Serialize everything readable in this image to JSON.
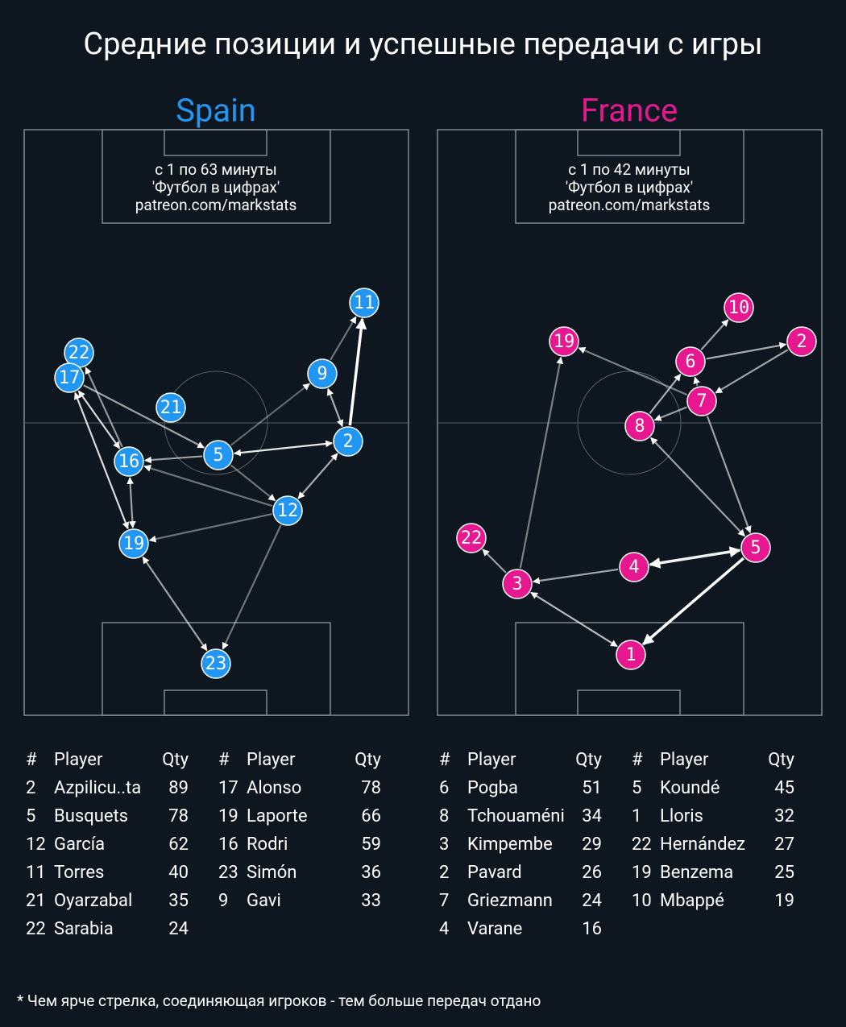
{
  "title": "Средние позиции и успешные передачи с игры",
  "teams": [
    {
      "name": "Spain",
      "color": "#2196f3",
      "caption": [
        "с 1 по 63 минуты",
        "'Футбол в цифрах'",
        "patreon.com/markstats"
      ],
      "nodes": [
        "11",
        "22",
        "17",
        "9",
        "21",
        "2",
        "5",
        "16",
        "12",
        "19",
        "23"
      ],
      "tables": [
        {
          "header": [
            "#",
            "Player",
            "Qty"
          ],
          "rows": [
            [
              "2",
              "Azpilicu..ta",
              89
            ],
            [
              "5",
              "Busquets",
              78
            ],
            [
              "12",
              "García",
              62
            ],
            [
              "11",
              "Torres",
              40
            ],
            [
              "21",
              "Oyarzabal",
              35
            ],
            [
              "22",
              "Sarabia",
              24
            ]
          ]
        },
        {
          "header": [
            "#",
            "Player",
            "Qty"
          ],
          "rows": [
            [
              "17",
              "Alonso",
              78
            ],
            [
              "19",
              "Laporte",
              66
            ],
            [
              "16",
              "Rodri",
              59
            ],
            [
              "23",
              "Simón",
              36
            ],
            [
              "9",
              "Gavi",
              33
            ]
          ]
        }
      ]
    },
    {
      "name": "France",
      "color": "#e6178f",
      "caption": [
        "с 1 по 42 минуты",
        "'Футбол в цифрах'",
        "patreon.com/markstats"
      ],
      "nodes": [
        "10",
        "19",
        "6",
        "2",
        "7",
        "8",
        "22",
        "5",
        "4",
        "3",
        "1"
      ],
      "tables": [
        {
          "header": [
            "#",
            "Player",
            "Qty"
          ],
          "rows": [
            [
              "6",
              "Pogba",
              51
            ],
            [
              "8",
              "Tchouaméni",
              34
            ],
            [
              "3",
              "Kimpembe",
              29
            ],
            [
              "2",
              "Pavard",
              26
            ],
            [
              "7",
              "Griezmann",
              24
            ],
            [
              "4",
              "Varane",
              16
            ]
          ]
        },
        {
          "header": [
            "#",
            "Player",
            "Qty"
          ],
          "rows": [
            [
              "5",
              "Koundé",
              45
            ],
            [
              "1",
              "Lloris",
              32
            ],
            [
              "22",
              "Hernández",
              27
            ],
            [
              "19",
              "Benzema",
              25
            ],
            [
              "10",
              "Mbappé",
              19
            ]
          ]
        }
      ]
    }
  ],
  "footnote": "* Чем ярче стрелка, соединяющая игроков - тем больше передач отдано"
}
